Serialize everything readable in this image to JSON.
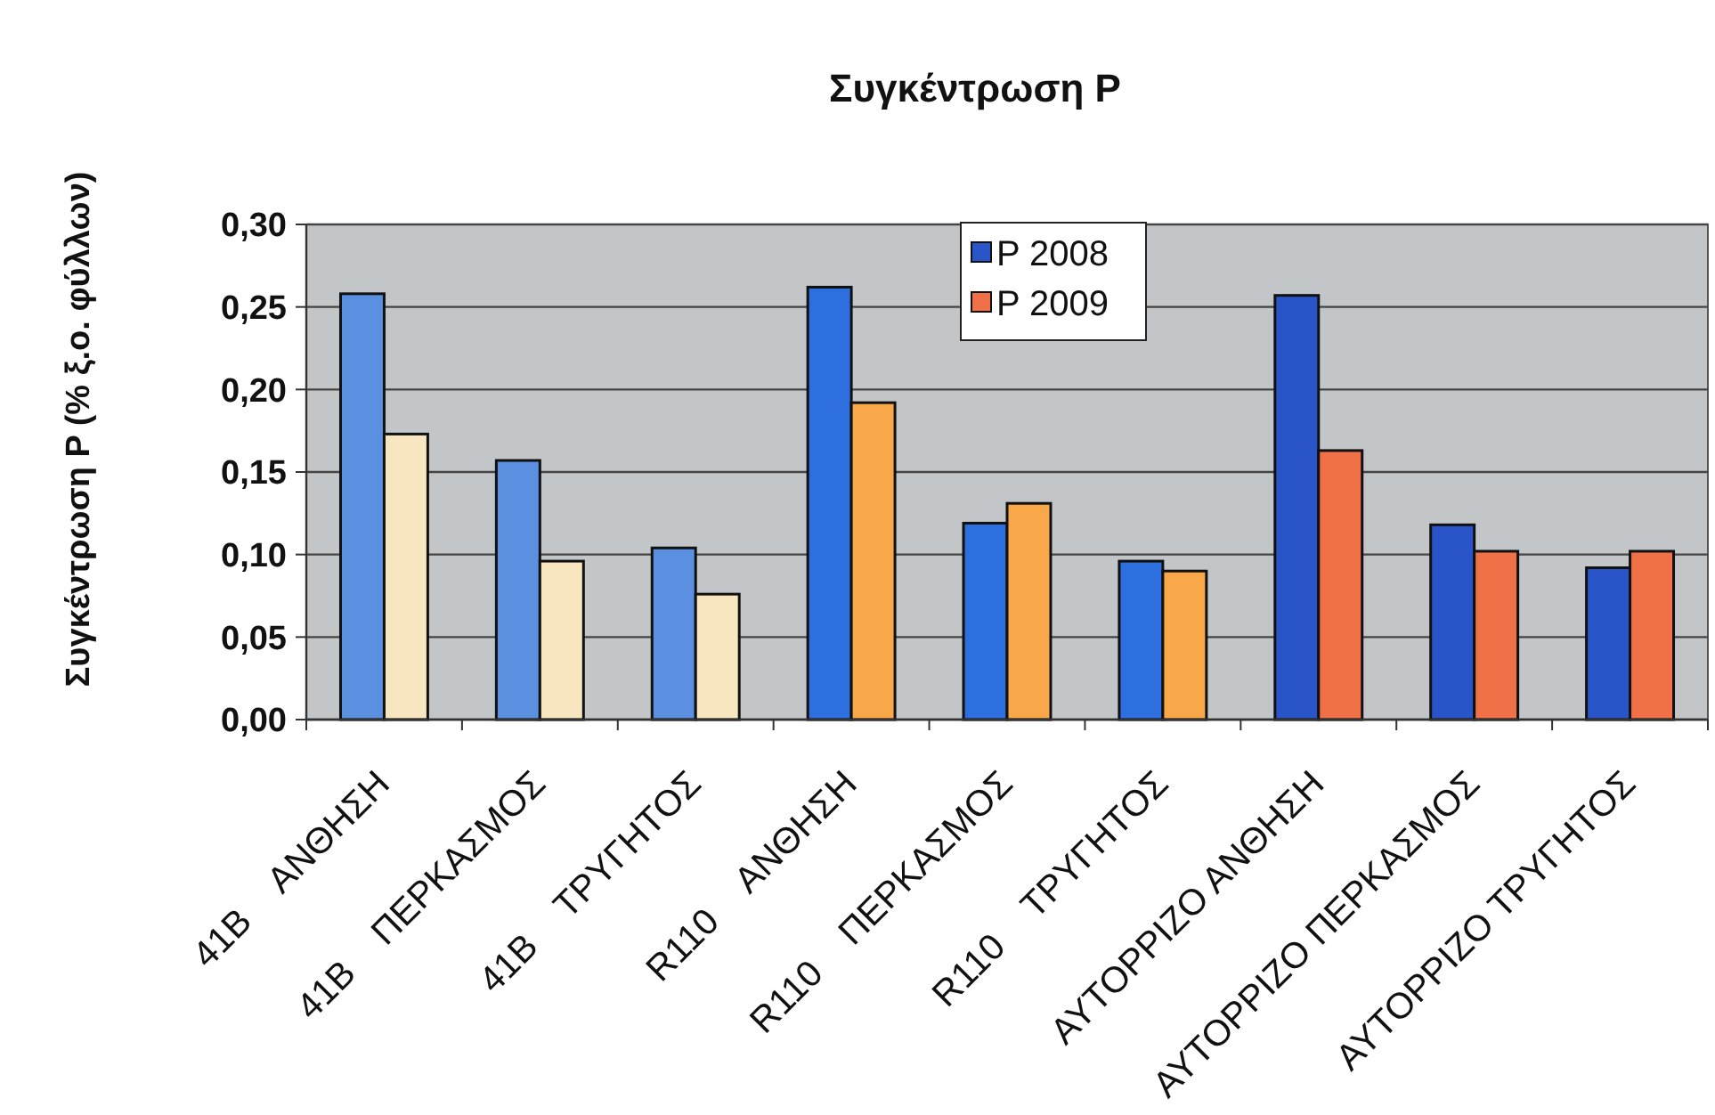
{
  "chart_data": {
    "type": "bar",
    "title": "Συγκέντρωση P",
    "ylabel": "Συγκέντρωση P (% ξ.ο. φύλλων)",
    "categories": [
      "41B    ΑΝΘΗΣΗ",
      "41B    ΠΕΡΚΑΣΜΟΣ",
      "41B    ΤΡΥΓΗΤΟΣ",
      "R110    ΑΝΘΗΣΗ",
      "R110    ΠΕΡΚΑΣΜΟΣ",
      "R110    ΤΡΥΓΗΤΟΣ",
      "ΑΥΤΟΡΡΙΖΟ ΑΝΘΗΣΗ",
      "ΑΥΤΟΡΡΙΖΟ ΠΕΡΚΑΣΜΟΣ",
      "ΑΥΤΟΡΡΙΖΟ ΤΡΥΓΗΤΟΣ"
    ],
    "series": [
      {
        "name": "P 2008",
        "color": "#2a55c8",
        "colors": [
          "#5b8fe0",
          "#5b8fe0",
          "#5b8fe0",
          "#2e6fe0",
          "#2e6fe0",
          "#2e6fe0",
          "#2a55c8",
          "#2a55c8",
          "#2a55c8"
        ],
        "values": [
          0.258,
          0.157,
          0.104,
          0.262,
          0.119,
          0.096,
          0.257,
          0.118,
          0.092
        ]
      },
      {
        "name": "P 2009",
        "color": "#f07048",
        "colors": [
          "#f8e6c0",
          "#f8e6c0",
          "#f8e6c0",
          "#f8a848",
          "#f8a848",
          "#f8a848",
          "#f07048",
          "#f07048",
          "#f07048"
        ],
        "values": [
          0.173,
          0.096,
          0.076,
          0.192,
          0.131,
          0.09,
          0.163,
          0.102,
          0.102
        ]
      }
    ],
    "ylim": [
      0,
      0.3
    ],
    "yticks": [
      {
        "value": 0,
        "label": "0,00"
      },
      {
        "value": 0.05,
        "label": "0,05"
      },
      {
        "value": 0.1,
        "label": "0,10"
      },
      {
        "value": 0.15,
        "label": "0,15"
      },
      {
        "value": 0.2,
        "label": "0,20"
      },
      {
        "value": 0.25,
        "label": "0,25"
      },
      {
        "value": 0.3,
        "label": "0,30"
      }
    ],
    "grid": "y",
    "legend": "top"
  }
}
